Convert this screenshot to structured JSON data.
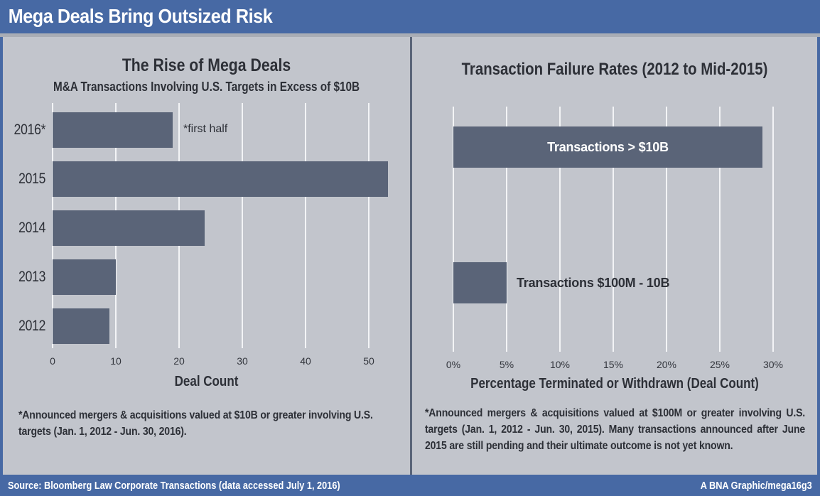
{
  "header": {
    "title": "Mega Deals Bring Outsized Risk"
  },
  "colors": {
    "accent_blue": "#4769a4",
    "panel_bg": "#c2c5cc",
    "bar_slate": "#5a6478",
    "text_dark": "#2d3037",
    "header_strip": "#a9adb5",
    "gridline": "#f3f4f6"
  },
  "chart_data": [
    {
      "type": "bar",
      "orientation": "horizontal",
      "title": "The Rise of Mega Deals",
      "subtitle": "M&A Transactions Involving U.S. Targets in Excess of $10B",
      "categories": [
        "2016*",
        "2015",
        "2014",
        "2013",
        "2012"
      ],
      "values": [
        19,
        53,
        24,
        10,
        9
      ],
      "annotation": "*first half",
      "xlabel": "Deal Count",
      "xticks": [
        "0",
        "10",
        "20",
        "30",
        "40",
        "50"
      ],
      "xtick_values": [
        0,
        10,
        20,
        30,
        40,
        50
      ],
      "xlim": [
        0,
        55
      ],
      "grid": true,
      "legend": "none",
      "footnote": "*Announced mergers & acquisitions valued at $10B or greater involving U.S. targets (Jan. 1, 2012 - Jun. 30, 2016)."
    },
    {
      "type": "bar",
      "orientation": "horizontal",
      "title": "Transaction Failure Rates (2012 to Mid-2015)",
      "categories": [
        "Transactions > $10B",
        "Transactions $100M - 10B"
      ],
      "values": [
        29,
        5
      ],
      "value_unit": "%",
      "xlabel": "Percentage Terminated or Withdrawn (Deal Count)",
      "xticks": [
        "0%",
        "5%",
        "10%",
        "15%",
        "20%",
        "25%",
        "30%"
      ],
      "xtick_values": [
        0,
        5,
        10,
        15,
        20,
        25,
        30
      ],
      "xlim": [
        0,
        31.5
      ],
      "grid": true,
      "legend": "none",
      "label_placement": [
        "inside-white",
        "outside-dark"
      ],
      "footnote": "*Announced mergers & acquisitions valued at $100M or greater involving U.S. targets (Jan. 1, 2012 - Jun. 30, 2015). Many transactions announced after June 2015 are still pending and their ultimate outcome is not yet known."
    }
  ],
  "footer": {
    "source": "Source: Bloomberg Law Corporate Transactions (data accessed July 1, 2016)",
    "credit": "A BNA Graphic/mega16g3"
  }
}
